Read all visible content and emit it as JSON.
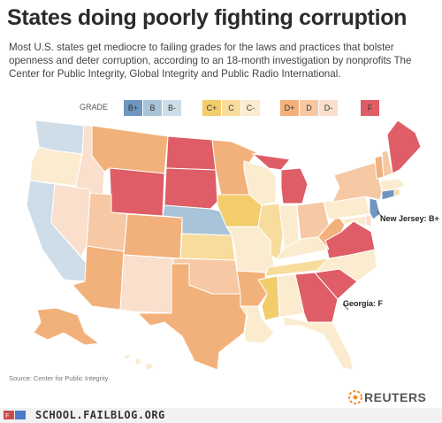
{
  "title": "States doing poorly fighting corruption",
  "subtitle": "Most U.S. states get mediocre to failing grades for the laws and practices that bolster openness and deter corruption, according to an 18-month investigation by nonprofits The Center for Public Integrity, Global Integrity and Public Radio International.",
  "legend": {
    "label": "GRADE",
    "grades": [
      {
        "grade": "B+",
        "color": "#6f97be"
      },
      {
        "grade": "B",
        "color": "#a9c3d8"
      },
      {
        "grade": "B-",
        "color": "#cedde8"
      },
      {
        "grade": "C+",
        "color": "#f3cc6c"
      },
      {
        "grade": "C",
        "color": "#f8dc9c"
      },
      {
        "grade": "C-",
        "color": "#fbecd0"
      },
      {
        "grade": "D+",
        "color": "#f2b17a"
      },
      {
        "grade": "D",
        "color": "#f6c8a4"
      },
      {
        "grade": "D-",
        "color": "#f9dfcc"
      },
      {
        "grade": "F",
        "color": "#de5d66"
      }
    ]
  },
  "annotations": {
    "new_jersey": "New Jersey: B+",
    "georgia": "Georgia: F"
  },
  "source": "Source: Center for Public Integrity",
  "brand": "REUTERS",
  "footer": "SCHOOL.FAILBLOG.ORG",
  "states": [
    {
      "name": "Washington",
      "grade": "B-"
    },
    {
      "name": "Oregon",
      "grade": "C-"
    },
    {
      "name": "California",
      "grade": "B-"
    },
    {
      "name": "Idaho",
      "grade": "D-"
    },
    {
      "name": "Nevada",
      "grade": "D-"
    },
    {
      "name": "Montana",
      "grade": "D+"
    },
    {
      "name": "Wyoming",
      "grade": "F"
    },
    {
      "name": "Utah",
      "grade": "D"
    },
    {
      "name": "Arizona",
      "grade": "D+"
    },
    {
      "name": "Colorado",
      "grade": "D+"
    },
    {
      "name": "New Mexico",
      "grade": "D-"
    },
    {
      "name": "North Dakota",
      "grade": "F"
    },
    {
      "name": "South Dakota",
      "grade": "F"
    },
    {
      "name": "Nebraska",
      "grade": "B"
    },
    {
      "name": "Kansas",
      "grade": "C"
    },
    {
      "name": "Oklahoma",
      "grade": "D"
    },
    {
      "name": "Texas",
      "grade": "D+"
    },
    {
      "name": "Minnesota",
      "grade": "D+"
    },
    {
      "name": "Iowa",
      "grade": "C+"
    },
    {
      "name": "Missouri",
      "grade": "C-"
    },
    {
      "name": "Arkansas",
      "grade": "D+"
    },
    {
      "name": "Louisiana",
      "grade": "C-"
    },
    {
      "name": "Wisconsin",
      "grade": "C-"
    },
    {
      "name": "Illinois",
      "grade": "C"
    },
    {
      "name": "Michigan",
      "grade": "F"
    },
    {
      "name": "Indiana",
      "grade": "C-"
    },
    {
      "name": "Ohio",
      "grade": "D"
    },
    {
      "name": "Kentucky",
      "grade": "C-"
    },
    {
      "name": "Tennessee",
      "grade": "C"
    },
    {
      "name": "Mississippi",
      "grade": "C+"
    },
    {
      "name": "Alabama",
      "grade": "C-"
    },
    {
      "name": "Georgia",
      "grade": "F"
    },
    {
      "name": "Florida",
      "grade": "C-"
    },
    {
      "name": "South Carolina",
      "grade": "F"
    },
    {
      "name": "North Carolina",
      "grade": "C-"
    },
    {
      "name": "Virginia",
      "grade": "F"
    },
    {
      "name": "West Virginia",
      "grade": "D+"
    },
    {
      "name": "Pennsylvania",
      "grade": "C-"
    },
    {
      "name": "New York",
      "grade": "D"
    },
    {
      "name": "New Jersey",
      "grade": "B+"
    },
    {
      "name": "Delaware",
      "grade": "D-"
    },
    {
      "name": "Maryland",
      "grade": "C-"
    },
    {
      "name": "Connecticut",
      "grade": "B+"
    },
    {
      "name": "Rhode Island",
      "grade": "C"
    },
    {
      "name": "Massachusetts",
      "grade": "C-"
    },
    {
      "name": "Vermont",
      "grade": "D+"
    },
    {
      "name": "New Hampshire",
      "grade": "D"
    },
    {
      "name": "Maine",
      "grade": "F"
    },
    {
      "name": "Alaska",
      "grade": "D+"
    },
    {
      "name": "Hawaii",
      "grade": "C-"
    }
  ]
}
